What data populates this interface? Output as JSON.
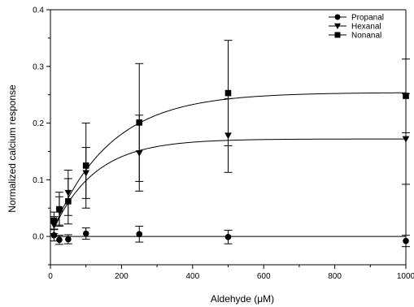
{
  "chart_data": {
    "type": "scatter",
    "xlabel": "Aldehyde (μM)",
    "ylabel": "Normalized calcium response",
    "xlim": [
      0,
      1000
    ],
    "ylim": [
      -0.05,
      0.4
    ],
    "xticks": [
      0,
      200,
      400,
      600,
      800,
      1000
    ],
    "yticks": [
      0.0,
      0.1,
      0.2,
      0.3,
      0.4
    ],
    "xtick_labels": [
      "0",
      "200",
      "400",
      "600",
      "800",
      "1000"
    ],
    "ytick_labels": [
      "0.0",
      "0.1",
      "0.2",
      "0.3",
      "0.4"
    ],
    "grid": false,
    "legend_position": "top-right",
    "series": [
      {
        "name": "Propanal",
        "marker": "circle",
        "x": [
          10,
          25,
          50,
          100,
          250,
          500,
          1000
        ],
        "y": [
          0.002,
          -0.006,
          -0.005,
          0.005,
          0.004,
          -0.001,
          -0.008
        ],
        "err": [
          0.01,
          0.008,
          0.008,
          0.01,
          0.014,
          0.012,
          0.01
        ],
        "fit": {
          "kind": "constant",
          "value": 0.0
        }
      },
      {
        "name": "Hexanal",
        "marker": "triangle-down",
        "x": [
          10,
          25,
          50,
          100,
          250,
          500,
          1000
        ],
        "y": [
          0.02,
          0.045,
          0.077,
          0.112,
          0.147,
          0.178,
          0.172
        ],
        "err": [
          0.015,
          0.025,
          0.04,
          0.045,
          0.067,
          0.065,
          0.08
        ],
        "fit": {
          "kind": "exp-rise",
          "a": 0.172,
          "k": 0.0085
        }
      },
      {
        "name": "Nonanal",
        "marker": "square",
        "x": [
          10,
          25,
          50,
          100,
          250,
          500,
          1000
        ],
        "y": [
          0.028,
          0.048,
          0.062,
          0.125,
          0.201,
          0.253,
          0.248
        ],
        "err": [
          0.015,
          0.03,
          0.04,
          0.075,
          0.104,
          0.093,
          0.065
        ],
        "fit": {
          "kind": "exp-rise",
          "a": 0.254,
          "k": 0.0062
        }
      }
    ]
  }
}
